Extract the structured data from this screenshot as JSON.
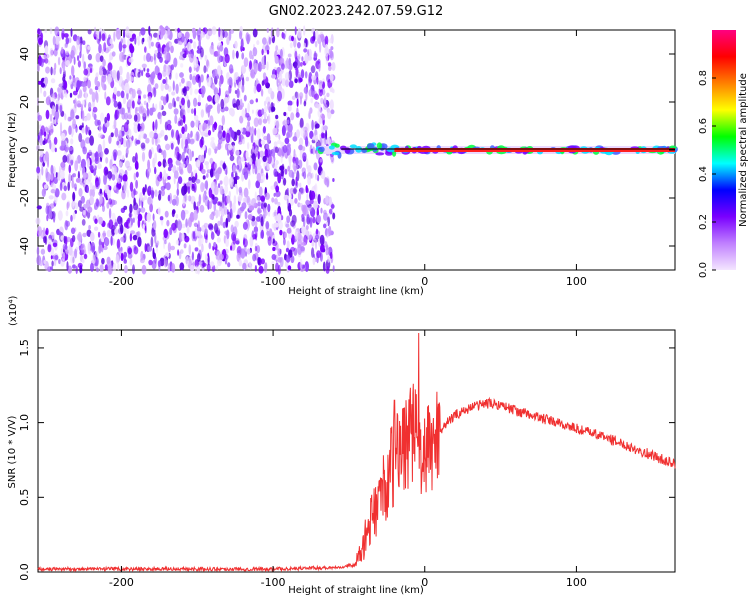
{
  "figure": {
    "title": "GN02.2023.242.07.59.G12"
  },
  "chart_data": [
    {
      "type": "heatmap",
      "xlabel": "Height of straight line (km)",
      "ylabel": "Frequency (Hz)",
      "xlim": [
        -255,
        165
      ],
      "ylim": [
        -50,
        50
      ],
      "x_ticks": [
        -200,
        -100,
        0,
        100
      ],
      "x_tick_labels": [
        "-200",
        "-100",
        "0",
        "100"
      ],
      "y_ticks": [
        -40,
        -20,
        0,
        20,
        40
      ],
      "y_tick_labels": [
        "-40",
        "-20",
        "0",
        "20",
        "40"
      ],
      "noise_region_x": [
        -255,
        -60
      ],
      "signal_line_frequency": 0,
      "signal_start_x": -70,
      "colorbar": {
        "label": "Normalized spectral amplitude",
        "range": [
          0,
          1
        ],
        "ticks": [
          0.0,
          0.2,
          0.4,
          0.6,
          0.8
        ],
        "tick_labels": [
          "0.0",
          "0.2",
          "0.4",
          "0.6",
          "0.8"
        ],
        "colors": [
          "#f4e6ff",
          "#c080ff",
          "#7a00ff",
          "#0000ff",
          "#00ffff",
          "#00ff00",
          "#ffff00",
          "#ff8000",
          "#ff0000",
          "#ff0080"
        ]
      }
    },
    {
      "type": "line",
      "xlabel": "Height of straight line (km)",
      "ylabel": "SNR (10 * V/V)",
      "yscale_label": "(x10⁴)",
      "xlim": [
        -255,
        165
      ],
      "ylim": [
        0,
        1.62
      ],
      "x_ticks": [
        -200,
        -100,
        0,
        100
      ],
      "x_tick_labels": [
        "-200",
        "-100",
        "0",
        "100"
      ],
      "y_ticks": [
        0.0,
        0.5,
        1.0,
        1.5
      ],
      "y_tick_labels": [
        "0.0",
        "0.5",
        "1.0",
        "1.5"
      ],
      "color": "#f03030",
      "series": [
        {
          "x": [
            -255,
            -200,
            -150,
            -100,
            -60,
            -45,
            -40,
            -35,
            -30,
            -25,
            -20,
            -15,
            -10,
            -5,
            0,
            5,
            10,
            20,
            30,
            40,
            50,
            60,
            80,
            100,
            120,
            140,
            165
          ],
          "y": [
            0.02,
            0.02,
            0.02,
            0.02,
            0.03,
            0.05,
            0.2,
            0.35,
            0.5,
            0.6,
            0.75,
            0.85,
            0.95,
            0.9,
            0.75,
            0.85,
            0.95,
            1.05,
            1.1,
            1.13,
            1.12,
            1.08,
            1.02,
            0.96,
            0.9,
            0.82,
            0.72
          ]
        }
      ],
      "spikes": [
        {
          "x": -20,
          "y": 1.15
        },
        {
          "x": -4,
          "y": 1.6
        }
      ]
    }
  ]
}
